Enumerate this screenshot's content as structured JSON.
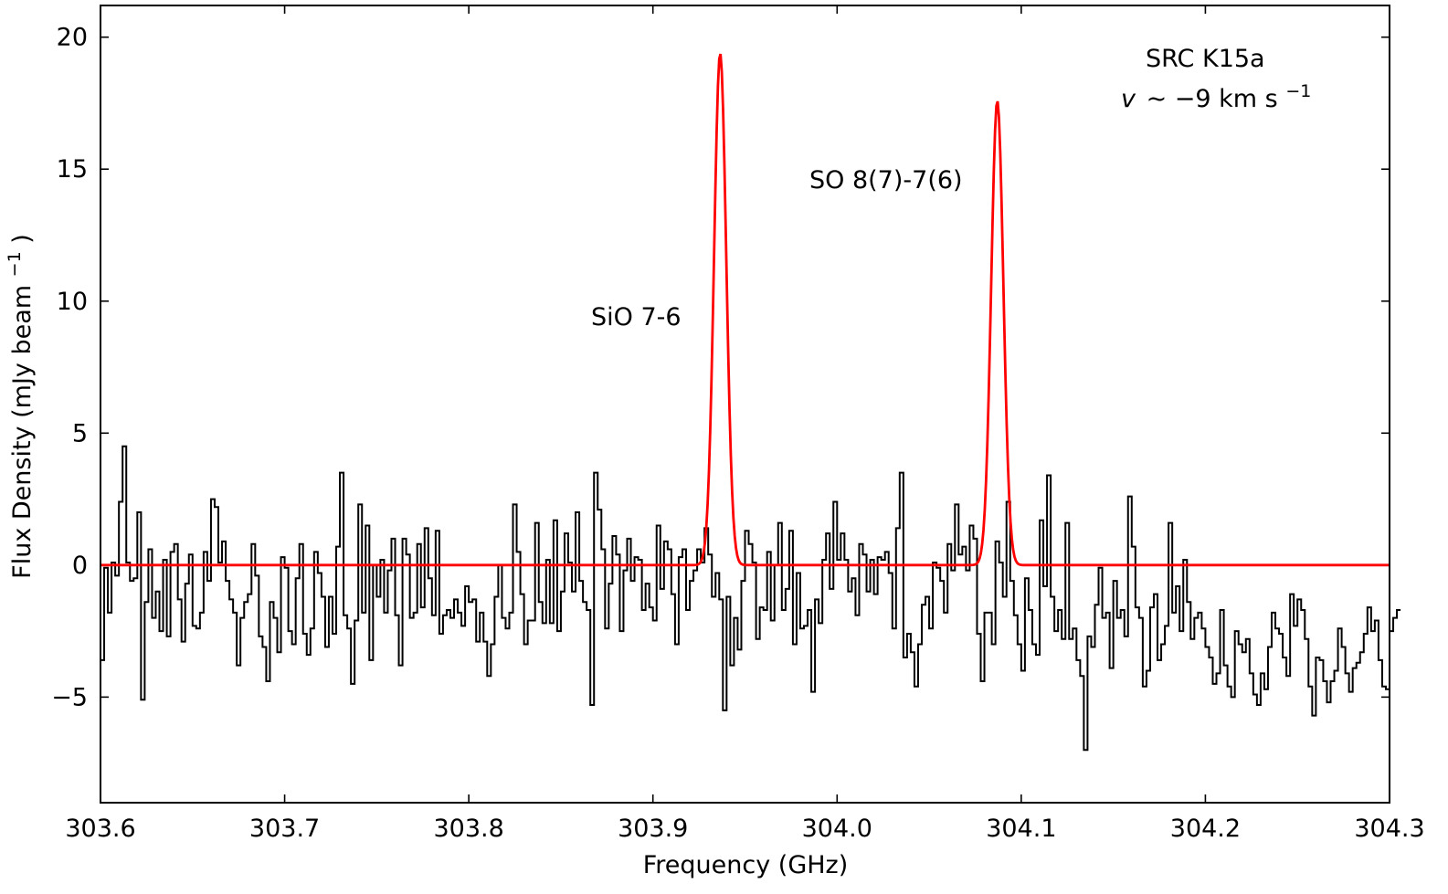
{
  "chart_data": {
    "type": "line",
    "title": "",
    "xlabel": "Frequency (GHz)",
    "ylabel_main": "Flux Density (mJy beam",
    "ylabel_sup": "−1",
    "ylabel_close": ")",
    "xlim": [
      303.6,
      304.3
    ],
    "ylim": [
      -9,
      21.2
    ],
    "xticks": [
      303.6,
      303.7,
      303.8,
      303.9,
      304.0,
      304.1,
      304.2,
      304.3
    ],
    "xtick_labels": [
      "303.6",
      "303.7",
      "303.8",
      "303.9",
      "304.0",
      "304.1",
      "304.2",
      "304.3"
    ],
    "yticks": [
      -5,
      0,
      5,
      10,
      15,
      20
    ],
    "ytick_labels": [
      "−5",
      "0",
      "5",
      "10",
      "15",
      "20"
    ],
    "grid": false,
    "annotations": [
      {
        "id": "sio",
        "text": "SiO 7-6"
      },
      {
        "id": "so",
        "text": "SO 8(7)-7(6)"
      }
    ],
    "source_label": {
      "line1": "SRC K15a",
      "line2_v": "v",
      "line2_mid": "∼ −9 km s",
      "line2_sup": "−1"
    },
    "series": [
      {
        "style": "step",
        "color": "#000000",
        "x_start": 303.6,
        "x_step": 0.002,
        "values": [
          -3.6,
          -0.1,
          -1.8,
          0.1,
          -0.4,
          2.4,
          4.5,
          0.1,
          -0.6,
          -0.5,
          2.0,
          -5.1,
          -1.4,
          0.6,
          -2.0,
          -1.0,
          -2.5,
          0.2,
          -2.7,
          0.5,
          0.8,
          -1.3,
          -2.9,
          -0.7,
          0.4,
          -2.3,
          -2.4,
          -1.8,
          0.5,
          -0.6,
          2.5,
          2.2,
          0.1,
          0.9,
          -0.6,
          -1.3,
          -1.8,
          -3.8,
          -2.0,
          -1.4,
          -1.1,
          0.8,
          -0.4,
          -2.7,
          -3.1,
          -4.4,
          -1.4,
          -2.0,
          -3.3,
          0.3,
          -0.1,
          -2.5,
          -3.0,
          -0.5,
          0.8,
          -2.6,
          -3.4,
          -2.4,
          0.5,
          -0.3,
          -1.2,
          -3.1,
          -1.2,
          -2.6,
          0.7,
          3.5,
          -1.9,
          -2.4,
          -4.5,
          -2.1,
          2.3,
          -1.8,
          1.5,
          -3.6,
          0.0,
          -1.2,
          0.2,
          -1.8,
          -0.2,
          1.0,
          -1.9,
          -3.8,
          1.0,
          0.4,
          -2.0,
          -1.8,
          0.8,
          -1.6,
          1.4,
          -0.5,
          -1.9,
          1.3,
          -2.6,
          -1.9,
          -1.7,
          -2.0,
          -1.3,
          -1.8,
          -2.3,
          -0.8,
          -1.4,
          -1.3,
          -2.9,
          -1.8,
          -2.9,
          -4.2,
          -3.0,
          -1.2,
          0.0,
          -2.0,
          -2.4,
          -1.8,
          2.3,
          0.5,
          -1.1,
          -3.0,
          -2.1,
          -2.1,
          1.6,
          -1.4,
          -2.2,
          0.2,
          -2.2,
          1.7,
          -2.5,
          -1.0,
          1.2,
          0.1,
          -1.0,
          2.0,
          -0.6,
          -1.4,
          -1.7,
          -5.3,
          3.5,
          2.1,
          0.6,
          -2.4,
          -0.7,
          1.1,
          0.4,
          -2.5,
          -0.2,
          1.0,
          -0.6,
          0.3,
          0.2,
          -1.7,
          -0.7,
          -1.6,
          -2.1,
          1.5,
          -0.9,
          0.9,
          0.6,
          -1.1,
          -3.0,
          0.3,
          0.6,
          -1.7,
          -0.6,
          -0.2,
          0.6,
          0.1,
          1.4,
          0.4,
          -1.2,
          -0.3,
          -1.3,
          -5.5,
          -1.2,
          -3.8,
          -2.0,
          -3.2,
          -0.6,
          1.3,
          0.8,
          0.1,
          -2.8,
          -1.6,
          -1.7,
          0.5,
          -2.1,
          0.0,
          1.6,
          -1.7,
          -0.9,
          1.3,
          -3.0,
          -0.3,
          -2.4,
          -2.3,
          -1.7,
          -4.8,
          -1.3,
          -2.2,
          0.2,
          1.2,
          -0.9,
          2.4,
          0.2,
          1.2,
          0.2,
          -1.0,
          -0.5,
          -1.9,
          0.8,
          0.4,
          -1.0,
          0.2,
          -1.1,
          0.3,
          0.2,
          0.5,
          -0.3,
          -2.4,
          1.4,
          3.5,
          -3.5,
          -2.6,
          -3.3,
          -4.6,
          -3.0,
          -1.5,
          -1.2,
          -2.4,
          0.1,
          -0.1,
          -0.6,
          -1.8,
          0.8,
          -0.2,
          2.3,
          0.4,
          0.7,
          -0.2,
          1.5,
          1.0,
          -2.6,
          -4.4,
          -1.8,
          -1.8,
          -3.0,
          0.9,
          0.1,
          -1.2,
          2.4,
          -0.6,
          -1.9,
          -3.0,
          -4.0,
          -0.5,
          -1.7,
          -3.0,
          -3.4,
          1.7,
          -0.8,
          3.4,
          -1.2,
          -2.5,
          -1.7,
          -2.8,
          1.6,
          -2.8,
          -2.4,
          -3.6,
          -4.2,
          -7.0,
          -2.7,
          -3.1,
          -1.5,
          -0.1,
          -2.0,
          -1.8,
          -3.9,
          -0.6,
          -2.0,
          -1.7,
          -2.7,
          2.6,
          0.7,
          -1.6,
          -2.0,
          -4.6,
          -4.0,
          -1.6,
          -1.1,
          -3.6,
          -3.0,
          -2.3,
          1.6,
          -1.8,
          -0.8,
          -2.5,
          0.2,
          -1.4,
          -2.8,
          -2.0,
          -1.8,
          -2.4,
          -3.1,
          -3.5,
          -4.5,
          -4.1,
          -1.7,
          -3.8,
          -4.6,
          -5.0,
          -2.5,
          -3.0,
          -3.3,
          -2.8,
          -4.1,
          -4.9,
          -5.3,
          -4.1,
          -4.7,
          -3.1,
          -1.8,
          -2.4,
          -2.6,
          -3.5,
          -4.2,
          -1.1,
          -2.3,
          -1.3,
          -1.7,
          -2.8,
          -4.6,
          -5.7,
          -3.5,
          -3.6,
          -4.4,
          -5.2,
          -4.4,
          -4.0,
          -2.4,
          -3.1,
          -4.1,
          -4.8,
          -3.9,
          -3.7,
          -3.3,
          -2.6,
          -1.6,
          -2.5,
          -2.1,
          -3.6,
          -4.6,
          -4.7,
          -2.5,
          -2.0,
          -1.7
        ]
      },
      {
        "style": "line",
        "color": "#ff0000",
        "x_start": 303.6,
        "x_step": 0.0007,
        "baseline": 0,
        "peaks": [
          {
            "center": 303.9365,
            "amplitude": 19.4,
            "sigma": 0.0033
          },
          {
            "center": 304.087,
            "amplitude": 17.6,
            "sigma": 0.0033
          }
        ]
      }
    ]
  }
}
